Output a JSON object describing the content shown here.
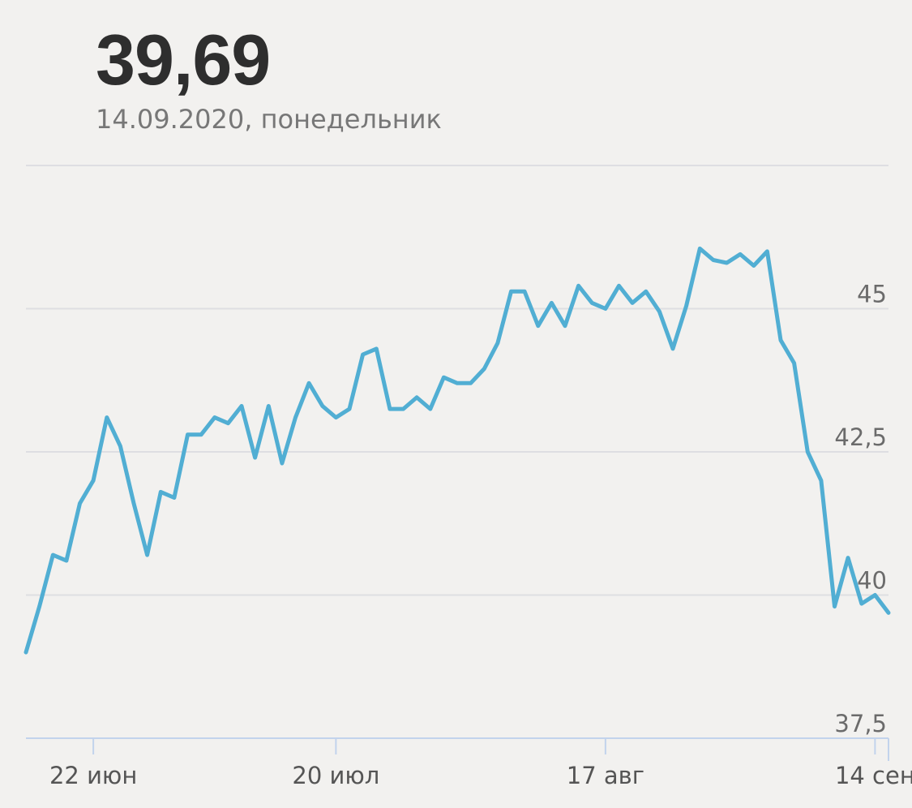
{
  "header": {
    "value": "39,69",
    "date": "14.09.2020, понедельник"
  },
  "colors": {
    "line": "#51aed3",
    "grid": "#dedee2",
    "axis": "#c2d3ec",
    "background": "#f2f1ef"
  },
  "chart_data": {
    "type": "line",
    "title": "",
    "xlabel": "",
    "ylabel": "",
    "ylim": [
      37.5,
      47.5
    ],
    "yticks": [
      {
        "value": 37.5,
        "label": "37,5"
      },
      {
        "value": 40,
        "label": "40"
      },
      {
        "value": 42.5,
        "label": "42,5"
      },
      {
        "value": 45,
        "label": "45"
      },
      {
        "value": 47.5,
        "label": ""
      }
    ],
    "xticks": [
      {
        "index": 5,
        "label": "22 июн"
      },
      {
        "index": 23,
        "label": "20 июл"
      },
      {
        "index": 43,
        "label": "17 авг"
      },
      {
        "index": 63,
        "label": "14 сен"
      }
    ],
    "grid": true,
    "series": [
      {
        "values": [
          39.0,
          39.8,
          40.7,
          40.6,
          41.6,
          42.0,
          43.1,
          42.6,
          41.6,
          40.7,
          41.8,
          41.7,
          42.8,
          42.8,
          43.1,
          43.0,
          43.3,
          42.4,
          43.3,
          42.3,
          43.1,
          43.7,
          43.3,
          43.1,
          43.25,
          44.2,
          44.3,
          43.25,
          43.25,
          43.45,
          43.25,
          43.8,
          43.7,
          43.7,
          43.95,
          44.4,
          45.3,
          45.3,
          44.7,
          45.1,
          44.7,
          45.4,
          45.1,
          45.0,
          45.4,
          45.1,
          45.3,
          44.95,
          44.3,
          45.05,
          46.05,
          45.85,
          45.8,
          45.95,
          45.75,
          46.0,
          44.45,
          44.05,
          42.5,
          42.0,
          39.8,
          40.65,
          39.85,
          40.0,
          39.69
        ]
      }
    ]
  }
}
